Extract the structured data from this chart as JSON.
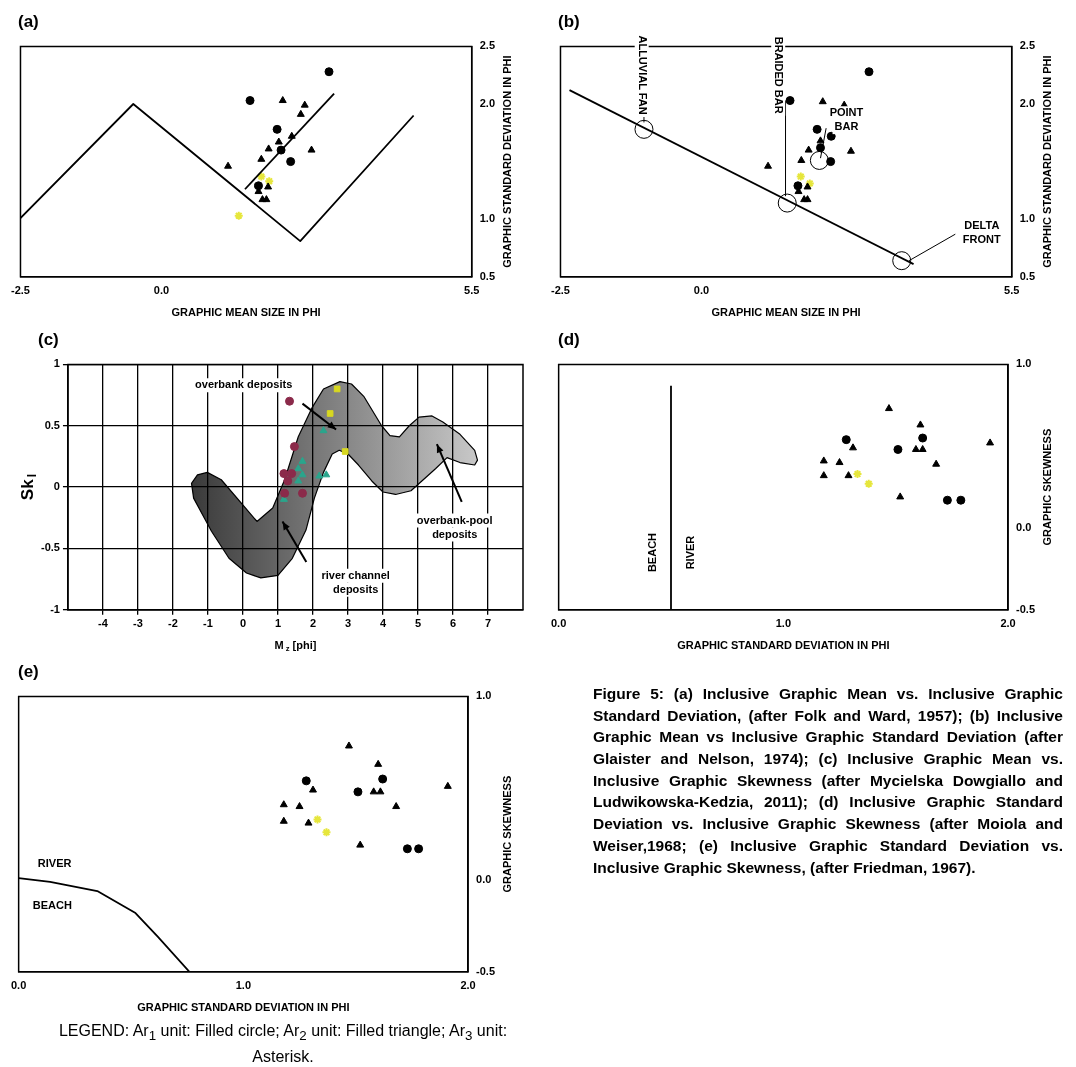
{
  "chart_data": [
    {
      "type": "scatter",
      "title": "(a)",
      "xlabel": "GRAPHIC MEAN SIZE IN PHI",
      "ylabel": "GRAPHIC STANDARD DEVIATION IN PHI",
      "xlim": [
        -2.5,
        5.5
      ],
      "xticks": [
        -2.5,
        {
          "value": 0,
          "label": "0.0"
        },
        5.5
      ],
      "ylim": [
        0.5,
        2.5
      ],
      "yticks": [
        0.5,
        {
          "value": 1,
          "label": "1.0"
        },
        {
          "value": 2,
          "label": "2.0"
        },
        2.5
      ],
      "grid": false,
      "series": [
        {
          "type": "line",
          "color": "#000000",
          "marker": "none",
          "x": [
            -2.5,
            -0.5,
            2.46,
            4.47
          ],
          "values": [
            1.01,
            2.0,
            0.81,
            1.9
          ]
        },
        {
          "type": "line",
          "color": "#000000",
          "marker": "none",
          "x": [
            1.48,
            3.06
          ],
          "values": [
            1.26,
            2.09
          ]
        },
        {
          "type": "scatter",
          "color": "#000000",
          "marker": "circle",
          "x": [
            2.97,
            1.57,
            2.05,
            2.12,
            2.29,
            1.72
          ],
          "values": [
            2.28,
            2.03,
            1.78,
            1.6,
            1.5,
            1.29
          ]
        },
        {
          "type": "scatter",
          "color": "#000000",
          "marker": "triangle",
          "x": [
            2.15,
            2.54,
            2.47,
            2.31,
            2.08,
            1.9,
            2.66,
            1.77,
            1.18,
            1.89,
            1.72,
            1.79,
            1.86
          ],
          "values": [
            2.03,
            1.99,
            1.91,
            1.72,
            1.67,
            1.61,
            1.6,
            1.52,
            1.46,
            1.28,
            1.24,
            1.17,
            1.17
          ]
        },
        {
          "type": "scatter",
          "color": "#e6e63c",
          "marker": "cross",
          "x": [
            1.77,
            1.91,
            1.37
          ],
          "values": [
            1.37,
            1.33,
            1.03
          ]
        }
      ]
    },
    {
      "type": "scatter",
      "title": "(b)",
      "xlabel": "GRAPHIC MEAN SIZE IN PHI",
      "ylabel": "GRAPHIC STANDARD DEVIATION IN PHI",
      "xlim": [
        -2.5,
        5.5
      ],
      "xticks": [
        -2.5,
        {
          "value": 0,
          "label": "0.0"
        },
        5.5
      ],
      "ylim": [
        0.5,
        2.5
      ],
      "yticks": [
        0.5,
        {
          "value": 1,
          "label": "1.0"
        },
        {
          "value": 2,
          "label": "2.0"
        },
        2.5
      ],
      "grid": false,
      "series": [
        {
          "type": "line",
          "color": "#000000",
          "marker": "none",
          "x": [
            -2.34,
            3.76
          ],
          "values": [
            2.12,
            0.61
          ]
        },
        {
          "type": "scatter",
          "color": "#000000",
          "marker": "circle",
          "x": [
            2.97,
            1.57,
            2.05,
            2.3,
            2.11,
            2.29,
            1.71
          ],
          "values": [
            2.28,
            2.03,
            1.78,
            1.72,
            1.62,
            1.5,
            1.29
          ]
        },
        {
          "type": "scatter",
          "color": "#000000",
          "marker": "triangle",
          "x": [
            2.15,
            2.53,
            2.11,
            1.9,
            2.65,
            1.77,
            1.18,
            1.88,
            1.72,
            1.82,
            1.88
          ],
          "values": [
            2.02,
            1.99,
            1.68,
            1.6,
            1.59,
            1.51,
            1.46,
            1.28,
            1.24,
            1.17,
            1.17
          ]
        },
        {
          "type": "scatter",
          "color": "#e6e63c",
          "marker": "cross",
          "x": [
            1.76,
            1.92
          ],
          "values": [
            1.37,
            1.31
          ]
        }
      ],
      "annotations": [
        {
          "text": "ALLUVIAL FAN",
          "x": -1.02,
          "y": 1.78
        },
        {
          "text": "BRAIDED BAR",
          "x": 1.52,
          "y": 1.14
        },
        {
          "text": "POINT BAR",
          "x": 2.09,
          "y": 1.51
        },
        {
          "text": "DELTA FRONT",
          "x": 3.55,
          "y": 0.64
        }
      ]
    },
    {
      "type": "scatter",
      "title": "(c)",
      "xlabel": "M$_{z}$ [phi]",
      "ylabel": "Sk$_{I}$",
      "xlim": [
        -5,
        8
      ],
      "xticks": [
        -4,
        -3,
        -2,
        -1,
        0,
        1,
        2,
        3,
        4,
        5,
        6,
        7
      ],
      "ylim": [
        -1,
        1
      ],
      "yticks": [
        -1,
        -0.5,
        0,
        0.5,
        1
      ],
      "grid": true,
      "series": [
        {
          "type": "scatter",
          "color": "#8b2a4a",
          "marker": "circle",
          "x": [
            1.33,
            1.47,
            1.17,
            1.39,
            1.28,
            1.19,
            1.7
          ],
          "values": [
            0.7,
            0.33,
            0.11,
            0.11,
            0.05,
            -0.05,
            -0.05
          ]
        },
        {
          "type": "scatter",
          "color": "#2aa58c",
          "marker": "triangle",
          "x": [
            2.3,
            1.7,
            1.58,
            1.7,
            1.58,
            2.18,
            2.38,
            1.17
          ],
          "values": [
            0.46,
            0.21,
            0.15,
            0.1,
            0.05,
            0.09,
            0.1,
            -0.1
          ]
        },
        {
          "type": "scatter",
          "color": "#d8d820",
          "marker": "square",
          "x": [
            2.69,
            2.49,
            2.92
          ],
          "values": [
            0.8,
            0.6,
            0.29
          ]
        }
      ],
      "annotations": [
        "overbank deposits",
        "river channel deposits",
        "overbank-pool deposits"
      ]
    },
    {
      "type": "scatter",
      "title": "(d)",
      "xlabel": "GRAPHIC STANDARD DEVIATION IN PHI",
      "ylabel": "GRAPHIC SKEWNESS",
      "xlim": [
        0,
        2
      ],
      "xticks": [
        {
          "value": 0,
          "label": "0.0"
        },
        {
          "value": 1,
          "label": "1.0"
        },
        {
          "value": 2,
          "label": "2.0"
        }
      ],
      "ylim": [
        -0.5,
        1
      ],
      "yticks": [
        -0.5,
        {
          "value": 0,
          "label": "0.0"
        },
        {
          "value": 1,
          "label": "1.0"
        }
      ],
      "grid": false,
      "series": [
        {
          "type": "line",
          "color": "#000000",
          "marker": "none",
          "x": [
            0.5,
            0.5
          ],
          "values": [
            -0.5,
            0.87
          ]
        },
        {
          "type": "scatter",
          "color": "#000000",
          "marker": "triangle",
          "x": [
            1.47,
            1.61,
            1.31,
            1.59,
            1.62,
            1.92,
            1.18,
            1.25,
            1.68,
            1.18,
            1.29,
            1.52
          ],
          "values": [
            0.73,
            0.63,
            0.49,
            0.48,
            0.48,
            0.52,
            0.41,
            0.4,
            0.39,
            0.32,
            0.32,
            0.19
          ]
        },
        {
          "type": "scatter",
          "color": "#000000",
          "marker": "circle",
          "x": [
            1.28,
            1.62,
            1.51,
            1.73,
            1.79
          ],
          "values": [
            0.54,
            0.55,
            0.48,
            0.17,
            0.17
          ]
        },
        {
          "type": "scatter",
          "color": "#e6e63c",
          "marker": "cross",
          "x": [
            1.33,
            1.38
          ],
          "values": [
            0.33,
            0.27
          ]
        }
      ],
      "annotations": [
        "BEACH",
        "RIVER"
      ]
    },
    {
      "type": "scatter",
      "title": "(e)",
      "xlabel": "GRAPHIC STANDARD DEVIATION IN PHI",
      "ylabel": "GRAPHIC SKEWNESS",
      "xlim": [
        0,
        2
      ],
      "xticks": [
        {
          "value": 0,
          "label": "0.0"
        },
        {
          "value": 1,
          "label": "1.0"
        },
        {
          "value": 2,
          "label": "2.0"
        }
      ],
      "ylim": [
        -0.5,
        1
      ],
      "yticks": [
        -0.5,
        {
          "value": 0,
          "label": "0.0"
        },
        {
          "value": 1,
          "label": "1.0"
        }
      ],
      "grid": false,
      "series": [
        {
          "type": "line",
          "color": "#000000",
          "marker": "none",
          "x": [
            0,
            0.14,
            0.35,
            0.52,
            0.62,
            0.76
          ],
          "values": [
            0.01,
            -0.01,
            -0.06,
            -0.18,
            -0.31,
            -0.5
          ]
        },
        {
          "type": "scatter",
          "color": "#000000",
          "marker": "triangle",
          "x": [
            1.47,
            1.6,
            1.31,
            1.58,
            1.61,
            1.91,
            1.18,
            1.25,
            1.68,
            1.18,
            1.29,
            1.52
          ],
          "values": [
            0.73,
            0.63,
            0.49,
            0.48,
            0.48,
            0.51,
            0.41,
            0.4,
            0.4,
            0.32,
            0.31,
            0.19
          ]
        },
        {
          "type": "scatter",
          "color": "#000000",
          "marker": "circle",
          "x": [
            1.28,
            1.62,
            1.51,
            1.73,
            1.78
          ],
          "values": [
            0.54,
            0.55,
            0.48,
            0.17,
            0.17
          ]
        },
        {
          "type": "scatter",
          "color": "#e6e63c",
          "marker": "cross",
          "x": [
            1.33,
            1.37
          ],
          "values": [
            0.33,
            0.26
          ]
        }
      ],
      "annotations": [
        "RIVER",
        "BEACH"
      ]
    },
    {
      "type": "other",
      "annotations": [
        "Figure 5: (a) Inclusive Graphic Mean vs. Inclusive Graphic Standard Deviation, (after Folk and Ward, 1957); (b) Inclusive Graphic Mean vs Inclusive Graphic Standard Deviation (after Glaister and Nelson, 1974); (c) Inclusive Graphic Mean vs. Inclusive Graphic Skewness (after Mycielska Dowgiallo and Ludwikowska-Kedzia, 2011); (d) Inclusive Graphic Standard Deviation vs. Inclusive Graphic Skewness (after Moiola and Weiser,1968; (e) Inclusive Graphic Standard Deviation vs. Inclusive Graphic Skewness, (after Friedman, 1967).",
        "LEGEND: Ar$_{1}$ unit: Filled circle; Ar$_{2}$ unit: Filled triangle; Ar$_{3}$ unit: Asterisk."
      ]
    }
  ]
}
